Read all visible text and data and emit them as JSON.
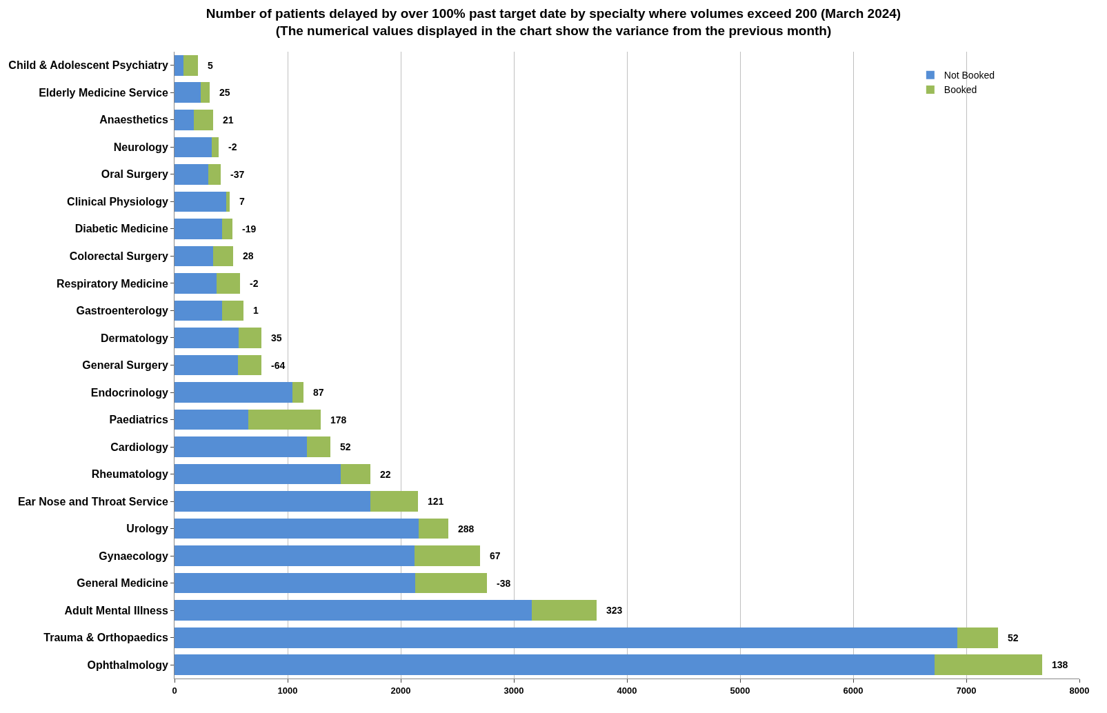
{
  "chart_data": {
    "type": "bar",
    "orientation": "horizontal",
    "stacked": true,
    "title": "Number of patients delayed by over 100% past target date by specialty where volumes exceed 200 (March 2024)",
    "subtitle": "(The numerical values displayed in the chart show the variance from the previous month)",
    "categories": [
      "Child & Adolescent Psychiatry",
      "Elderly Medicine Service",
      "Anaesthetics",
      "Neurology",
      "Oral Surgery",
      "Clinical Physiology",
      "Diabetic Medicine",
      "Colorectal Surgery",
      "Respiratory Medicine",
      "Gastroenterology",
      "Dermatology",
      "General Surgery",
      "Endocrinology",
      "Paediatrics",
      "Cardiology",
      "Rheumatology",
      "Ear Nose and Throat Service",
      "Urology",
      "Gynaecology",
      "General Medicine",
      "Adult Mental Illness",
      "Trauma & Orthopaedics",
      "Ophthalmology"
    ],
    "series": [
      {
        "name": "Not Booked",
        "color": "#558ed5",
        "values": [
          80,
          230,
          170,
          330,
          300,
          460,
          420,
          340,
          370,
          420,
          570,
          560,
          1040,
          650,
          1170,
          1470,
          1730,
          2160,
          2120,
          2130,
          3160,
          6920,
          6720
        ]
      },
      {
        "name": "Booked",
        "color": "#9bbb59",
        "values": [
          130,
          80,
          170,
          60,
          110,
          30,
          90,
          180,
          210,
          190,
          200,
          210,
          100,
          640,
          210,
          260,
          420,
          260,
          580,
          630,
          570,
          360,
          950
        ]
      }
    ],
    "annotations": [
      {
        "text": "5",
        "x": 210,
        "y": "Child & Adolescent Psychiatry"
      },
      {
        "text": "25",
        "x": 310,
        "y": "Elderly Medicine Service"
      },
      {
        "text": "21",
        "x": 340,
        "y": "Anaesthetics"
      },
      {
        "text": "-2",
        "x": 390,
        "y": "Neurology"
      },
      {
        "text": "-37",
        "x": 410,
        "y": "Oral Surgery"
      },
      {
        "text": "7",
        "x": 490,
        "y": "Clinical Physiology"
      },
      {
        "text": "-19",
        "x": 510,
        "y": "Diabetic Medicine"
      },
      {
        "text": "28",
        "x": 520,
        "y": "Colorectal Surgery"
      },
      {
        "text": "-2",
        "x": 580,
        "y": "Respiratory Medicine"
      },
      {
        "text": "1",
        "x": 610,
        "y": "Gastroenterology"
      },
      {
        "text": "35",
        "x": 770,
        "y": "Dermatology"
      },
      {
        "text": "-64",
        "x": 770,
        "y": "General Surgery"
      },
      {
        "text": "87",
        "x": 1140,
        "y": "Endocrinology"
      },
      {
        "text": "178",
        "x": 1290,
        "y": "Paediatrics"
      },
      {
        "text": "52",
        "x": 1380,
        "y": "Cardiology"
      },
      {
        "text": "22",
        "x": 1730,
        "y": "Rheumatology"
      },
      {
        "text": "121",
        "x": 2150,
        "y": "Ear Nose and Throat Service"
      },
      {
        "text": "288",
        "x": 2420,
        "y": "Urology"
      },
      {
        "text": "67",
        "x": 2700,
        "y": "Gynaecology"
      },
      {
        "text": "-38",
        "x": 2760,
        "y": "General Medicine"
      },
      {
        "text": "323",
        "x": 3730,
        "y": "Adult Mental Illness"
      },
      {
        "text": "52",
        "x": 7280,
        "y": "Trauma & Orthopaedics"
      },
      {
        "text": "138",
        "x": 7670,
        "y": "Ophthalmology"
      }
    ],
    "xlim": [
      0,
      8000
    ],
    "xticks": [
      0,
      1000,
      2000,
      3000,
      4000,
      5000,
      6000,
      7000,
      8000
    ],
    "grid": "x",
    "legend": "top right"
  }
}
